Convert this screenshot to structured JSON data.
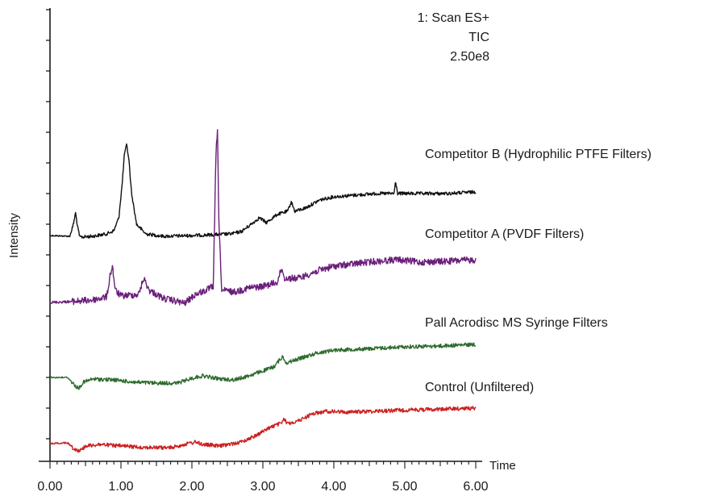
{
  "chart_data": {
    "type": "line",
    "title": "",
    "xlabel": "Time",
    "ylabel": "Intensity",
    "xlim": [
      0,
      6
    ],
    "x_ticks": [
      "0.00",
      "1.00",
      "2.00",
      "3.00",
      "4.00",
      "5.00",
      "6.00"
    ],
    "annotation": [
      "1: Scan ES+",
      "TIC",
      "2.50e8"
    ],
    "grid": false,
    "series": [
      {
        "name": "Competitor B (Hydrophilic PTFE Filters)",
        "color": "#111111",
        "noise": 1.3,
        "points": [
          [
            0.0,
            292
          ],
          [
            0.28,
            293
          ],
          [
            0.33,
            278
          ],
          [
            0.36,
            264
          ],
          [
            0.39,
            282
          ],
          [
            0.42,
            294
          ],
          [
            0.6,
            293
          ],
          [
            0.8,
            290
          ],
          [
            0.9,
            286
          ],
          [
            0.97,
            270
          ],
          [
            1.02,
            225
          ],
          [
            1.05,
            190
          ],
          [
            1.08,
            180
          ],
          [
            1.11,
            196
          ],
          [
            1.15,
            240
          ],
          [
            1.22,
            278
          ],
          [
            1.35,
            290
          ],
          [
            1.6,
            293
          ],
          [
            2.0,
            292
          ],
          [
            2.3,
            291
          ],
          [
            2.55,
            290
          ],
          [
            2.7,
            287
          ],
          [
            2.85,
            277
          ],
          [
            2.95,
            270
          ],
          [
            3.05,
            276
          ],
          [
            3.2,
            266
          ],
          [
            3.35,
            262
          ],
          [
            3.4,
            250
          ],
          [
            3.45,
            262
          ],
          [
            3.6,
            258
          ],
          [
            3.8,
            248
          ],
          [
            4.0,
            244
          ],
          [
            4.3,
            242
          ],
          [
            4.6,
            240
          ],
          [
            4.85,
            240
          ],
          [
            4.87,
            225
          ],
          [
            4.9,
            240
          ],
          [
            5.2,
            240
          ],
          [
            5.6,
            240
          ],
          [
            6.0,
            238
          ]
        ]
      },
      {
        "name": "Competitor A (PVDF Filters)",
        "color": "#6b1f7a",
        "noise": 2.6,
        "points": [
          [
            0.0,
            375
          ],
          [
            0.3,
            374
          ],
          [
            0.6,
            372
          ],
          [
            0.8,
            368
          ],
          [
            0.85,
            340
          ],
          [
            0.88,
            330
          ],
          [
            0.92,
            360
          ],
          [
            1.0,
            367
          ],
          [
            1.25,
            365
          ],
          [
            1.32,
            345
          ],
          [
            1.4,
            360
          ],
          [
            1.6,
            370
          ],
          [
            1.9,
            376
          ],
          [
            2.05,
            365
          ],
          [
            2.2,
            360
          ],
          [
            2.3,
            355
          ],
          [
            2.34,
            190
          ],
          [
            2.36,
            162
          ],
          [
            2.38,
            275
          ],
          [
            2.42,
            360
          ],
          [
            2.6,
            362
          ],
          [
            2.8,
            357
          ],
          [
            3.0,
            355
          ],
          [
            3.2,
            350
          ],
          [
            3.27,
            332
          ],
          [
            3.3,
            345
          ],
          [
            3.5,
            345
          ],
          [
            3.8,
            335
          ],
          [
            4.0,
            330
          ],
          [
            4.3,
            327
          ],
          [
            4.6,
            324
          ],
          [
            4.9,
            322
          ],
          [
            5.2,
            325
          ],
          [
            5.6,
            324
          ],
          [
            6.0,
            322
          ]
        ]
      },
      {
        "name": "Pall Acrodisc MS Syringe Filters",
        "color": "#2e6b2e",
        "noise": 1.5,
        "points": [
          [
            0.0,
            468
          ],
          [
            0.25,
            468
          ],
          [
            0.33,
            476
          ],
          [
            0.4,
            482
          ],
          [
            0.47,
            474
          ],
          [
            0.6,
            470
          ],
          [
            0.9,
            471
          ],
          [
            1.2,
            474
          ],
          [
            1.5,
            475
          ],
          [
            1.8,
            475
          ],
          [
            2.0,
            469
          ],
          [
            2.15,
            466
          ],
          [
            2.4,
            470
          ],
          [
            2.6,
            471
          ],
          [
            2.8,
            466
          ],
          [
            3.0,
            460
          ],
          [
            3.15,
            455
          ],
          [
            3.28,
            442
          ],
          [
            3.33,
            450
          ],
          [
            3.5,
            445
          ],
          [
            3.75,
            438
          ],
          [
            4.0,
            434
          ],
          [
            4.3,
            433
          ],
          [
            4.6,
            432
          ],
          [
            5.0,
            430
          ],
          [
            5.5,
            429
          ],
          [
            6.0,
            427
          ]
        ]
      },
      {
        "name": "Control (Unfiltered)",
        "color": "#cc2020",
        "noise": 1.5,
        "points": [
          [
            0.0,
            550
          ],
          [
            0.25,
            549
          ],
          [
            0.33,
            556
          ],
          [
            0.42,
            559
          ],
          [
            0.5,
            553
          ],
          [
            0.7,
            551
          ],
          [
            1.0,
            553
          ],
          [
            1.4,
            555
          ],
          [
            1.7,
            555
          ],
          [
            1.95,
            550
          ],
          [
            2.05,
            548
          ],
          [
            2.15,
            551
          ],
          [
            2.4,
            553
          ],
          [
            2.7,
            548
          ],
          [
            2.9,
            540
          ],
          [
            3.1,
            530
          ],
          [
            3.25,
            525
          ],
          [
            3.3,
            520
          ],
          [
            3.35,
            525
          ],
          [
            3.5,
            522
          ],
          [
            3.7,
            513
          ],
          [
            3.9,
            510
          ],
          [
            4.2,
            511
          ],
          [
            4.5,
            510
          ],
          [
            4.8,
            509
          ],
          [
            5.2,
            508
          ],
          [
            5.6,
            507
          ],
          [
            6.0,
            506
          ]
        ]
      }
    ]
  }
}
